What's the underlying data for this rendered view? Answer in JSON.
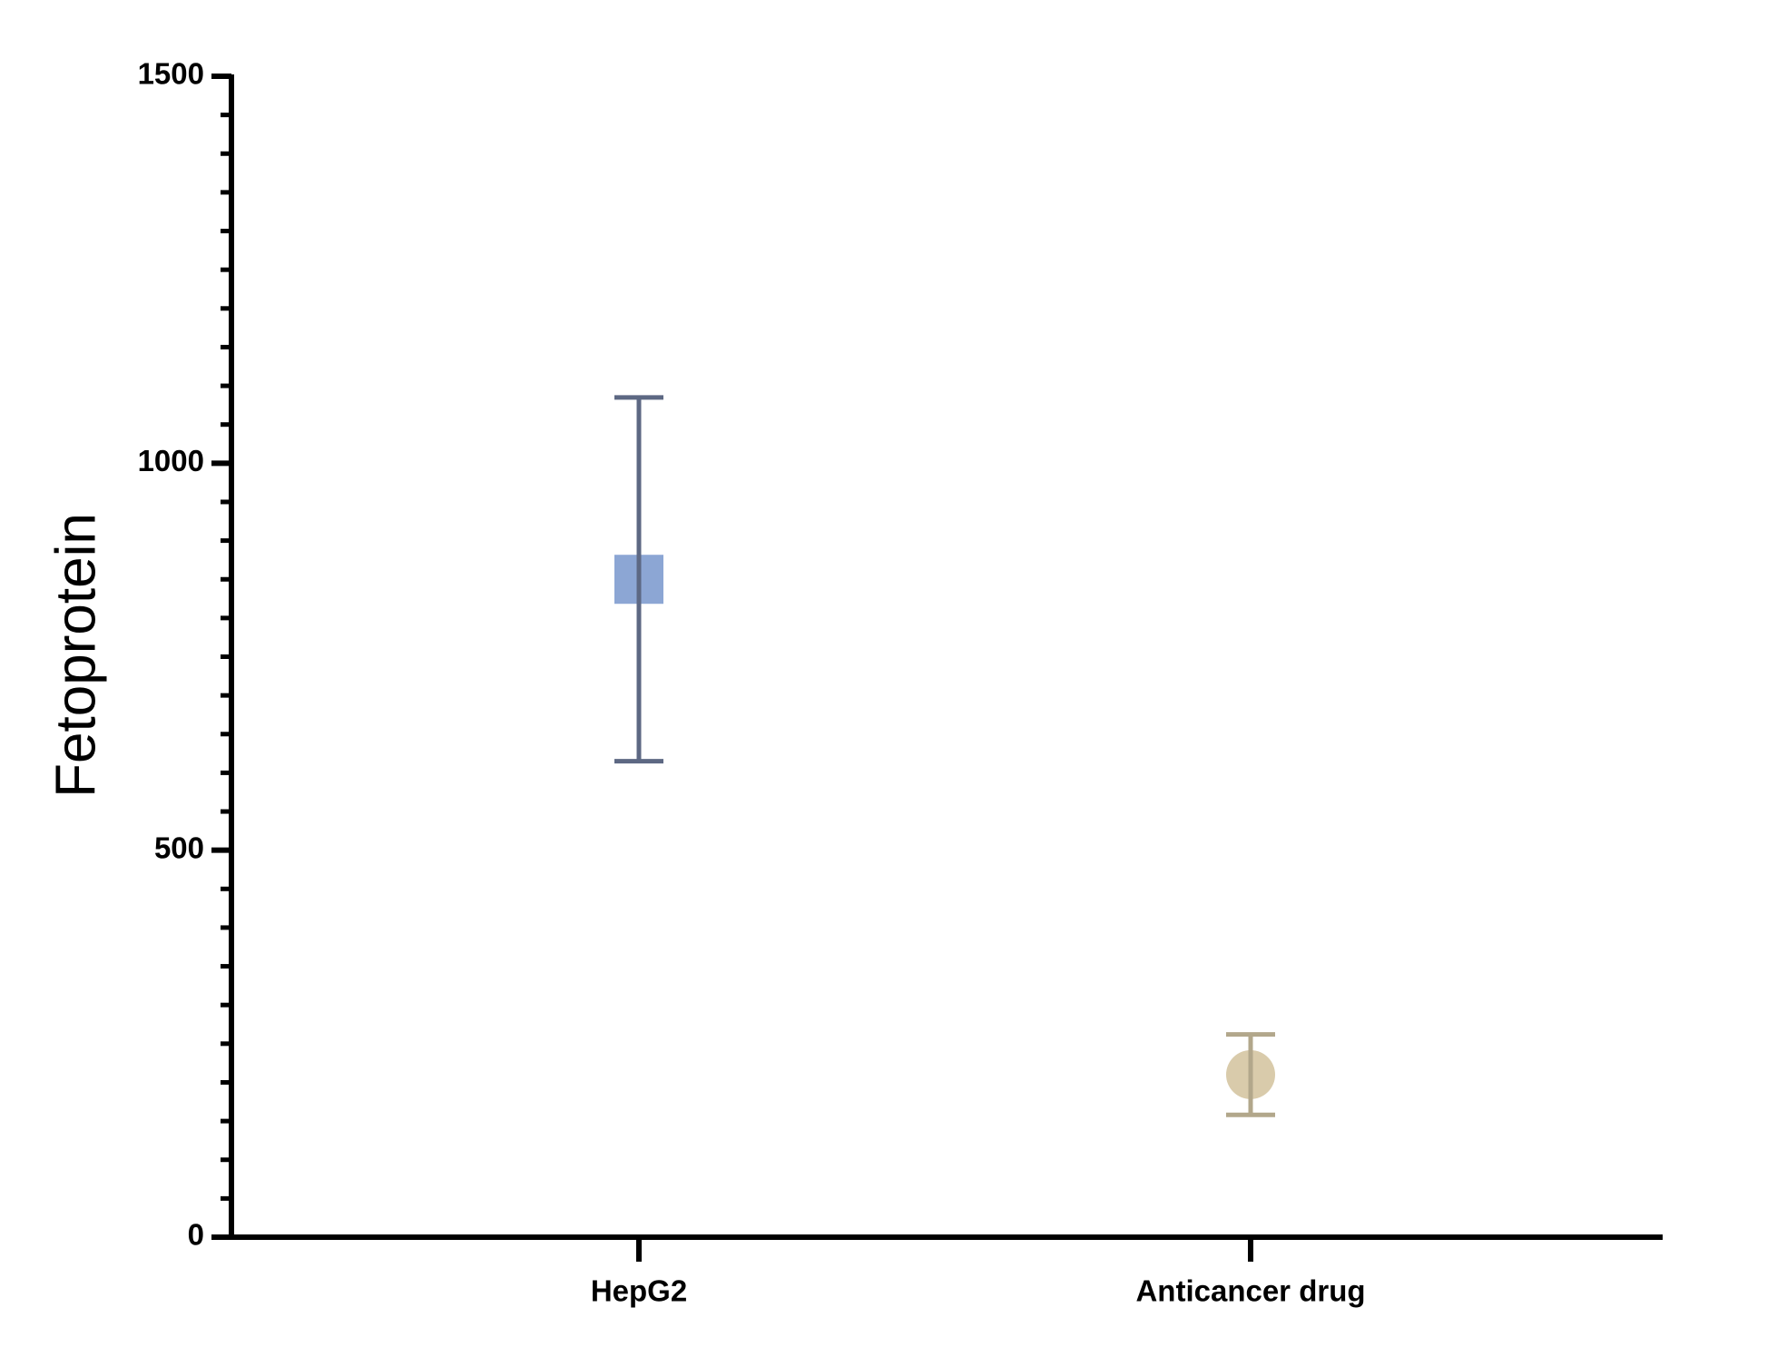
{
  "chart_data": {
    "type": "errorbar",
    "y_label": "Fetoprotein",
    "categories": [
      "HepG2",
      "Anticancer drug"
    ],
    "values": [
      850,
      210
    ],
    "errors": [
      235,
      52
    ],
    "markers": [
      "square",
      "circle"
    ],
    "colors": [
      "#8ca6d4",
      "#d9cbab"
    ],
    "error_colors": [
      "#5d6883",
      "#b2a78b"
    ],
    "ylim": [
      0,
      1500
    ],
    "yticks": [
      0,
      500,
      1000,
      1500
    ],
    "yticks_minor": [
      50,
      100,
      150,
      200,
      250,
      300,
      350,
      400,
      450,
      550,
      600,
      650,
      700,
      750,
      800,
      850,
      900,
      950,
      1050,
      1100,
      1150,
      1200,
      1250,
      1300,
      1350,
      1400,
      1450
    ]
  }
}
